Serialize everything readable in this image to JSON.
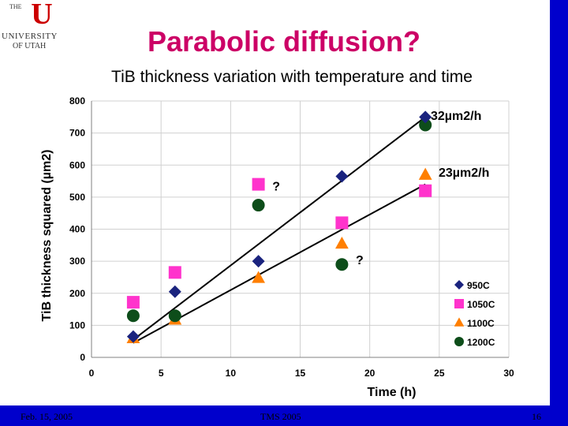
{
  "header": {
    "title": "Parabolic diffusion?",
    "subtitle": "TiB thickness variation with temperature and time"
  },
  "logo": {
    "the": "THE",
    "university": "UNIVERSITY",
    "of_utah": "OF UTAH"
  },
  "footer": {
    "date": "Feb. 15, 2005",
    "event": "TMS 2005",
    "page": "16"
  },
  "colors": {
    "background_border": "#0000cc",
    "title": "#cc0066"
  },
  "chart_data": {
    "type": "scatter",
    "xlabel": "Time (h)",
    "ylabel": "TiB thickness squared (µm2)",
    "xlim": [
      0,
      30
    ],
    "ylim": [
      0,
      800
    ],
    "xticks": [
      0,
      5,
      10,
      15,
      20,
      25,
      30
    ],
    "yticks": [
      0,
      100,
      200,
      300,
      400,
      500,
      600,
      700,
      800
    ],
    "grid": true,
    "legend": "right",
    "series": [
      {
        "name": "950C",
        "marker": "diamond",
        "color": "#1a237e",
        "x": [
          3,
          6,
          12,
          18,
          24
        ],
        "y": [
          65,
          205,
          300,
          565,
          750
        ]
      },
      {
        "name": "1050C",
        "marker": "square",
        "color": "#ff33cc",
        "x": [
          3,
          6,
          12,
          18,
          24
        ],
        "y": [
          172,
          265,
          540,
          420,
          520
        ]
      },
      {
        "name": "1100C",
        "marker": "triangle",
        "color": "#ff7f00",
        "x": [
          3,
          6,
          12,
          18,
          24
        ],
        "y": [
          60,
          118,
          248,
          355,
          570
        ]
      },
      {
        "name": "1200C",
        "marker": "circle",
        "color": "#0d4d1a",
        "x": [
          3,
          6,
          12,
          18,
          24
        ],
        "y": [
          130,
          130,
          475,
          290,
          725
        ]
      }
    ],
    "fit_lines": [
      {
        "label": "32µm2/h",
        "x": [
          3,
          24
        ],
        "y": [
          55,
          750
        ]
      },
      {
        "label": "23µm2/h",
        "x": [
          3,
          24
        ],
        "y": [
          45,
          540
        ]
      }
    ],
    "annotations": [
      {
        "text": "?",
        "x": 13,
        "y": 535
      },
      {
        "text": "?",
        "x": 19,
        "y": 305
      }
    ]
  }
}
